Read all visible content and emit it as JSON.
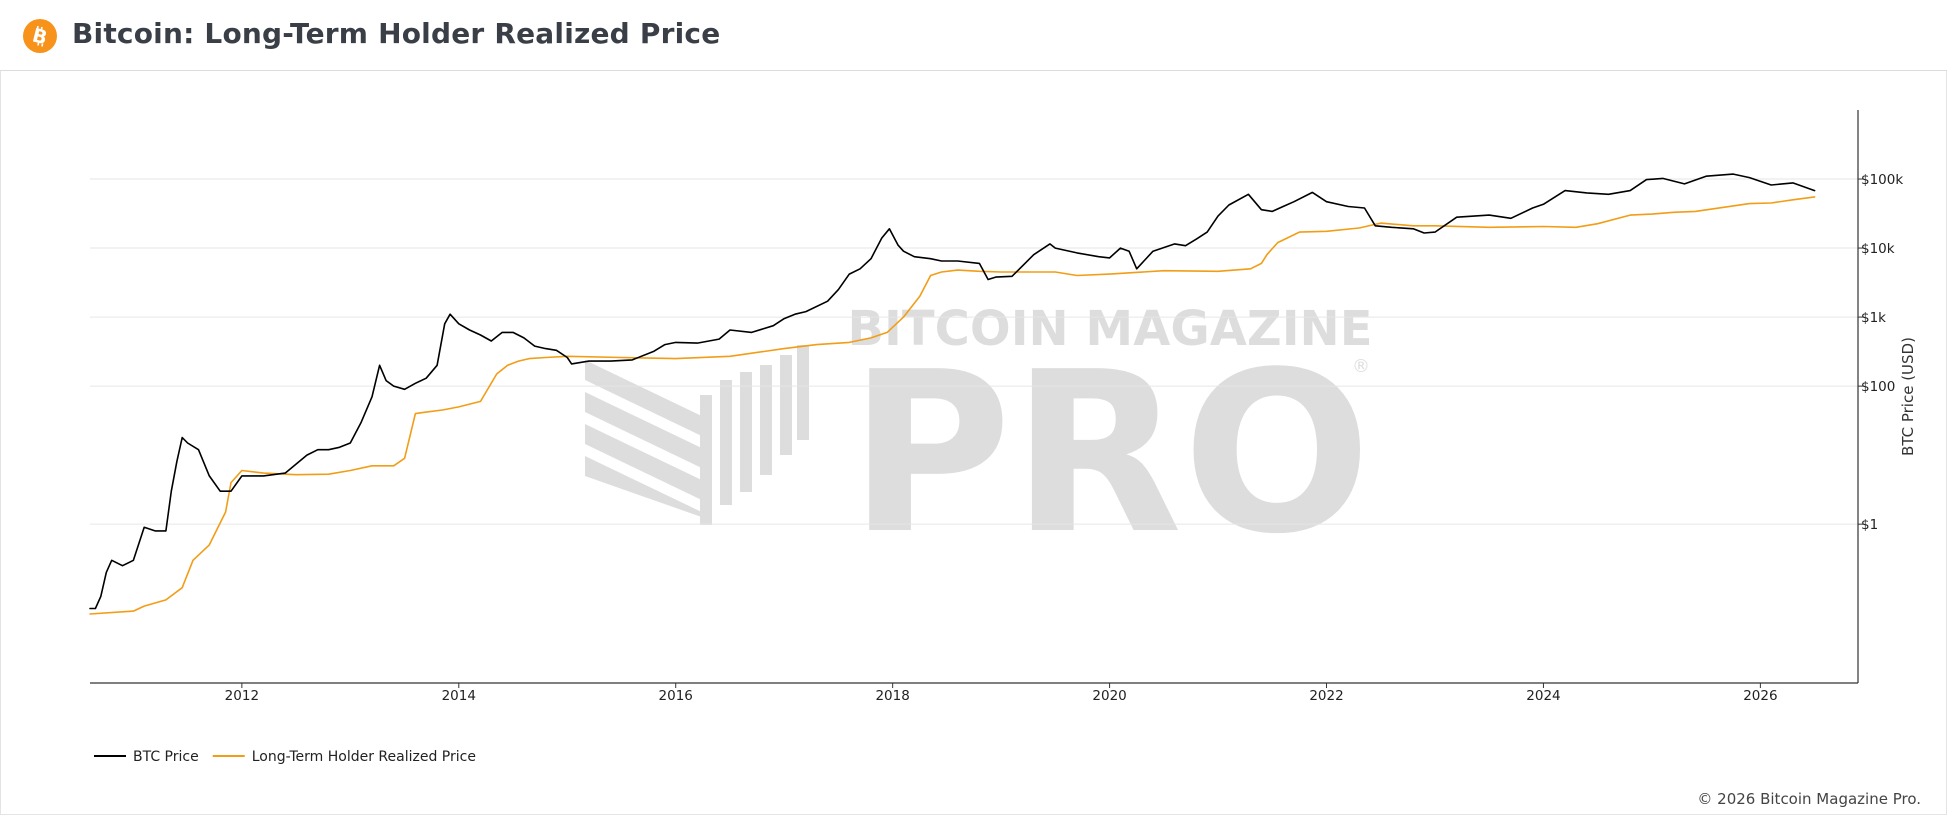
{
  "header": {
    "title": "Bitcoin: Long-Term Holder Realized Price",
    "logo_icon": "bitcoin-logo-icon",
    "brand_color": "#f7931a"
  },
  "watermark": {
    "line1": "BITCOIN MAGAZINE",
    "line2": "PRO",
    "registered": "®"
  },
  "footer": {
    "copyright": "© 2026 Bitcoin Magazine Pro."
  },
  "chart_data": {
    "type": "line",
    "title": "Bitcoin: Long-Term Holder Realized Price",
    "xlabel": "",
    "ylabel": "BTC Price (USD)",
    "yscale": "log",
    "ylim": [
      0.005,
      1000000
    ],
    "xlim": [
      2010.6,
      2026.9
    ],
    "x_ticks": [
      2012,
      2014,
      2016,
      2018,
      2020,
      2022,
      2024,
      2026
    ],
    "y_ticks": [
      {
        "value": 1,
        "label": "$1"
      },
      {
        "value": 100,
        "label": "$100"
      },
      {
        "value": 1000,
        "label": "$1k"
      },
      {
        "value": 10000,
        "label": "$10k"
      },
      {
        "value": 100000,
        "label": "$100k"
      }
    ],
    "grid": "horizontal",
    "legend_position": "bottom-left",
    "series": [
      {
        "name": "BTC Price",
        "color": "#000000",
        "x": [
          2010.6,
          2010.65,
          2010.7,
          2010.75,
          2010.8,
          2010.9,
          2011.0,
          2011.1,
          2011.2,
          2011.3,
          2011.35,
          2011.4,
          2011.45,
          2011.5,
          2011.6,
          2011.7,
          2011.8,
          2011.9,
          2012.0,
          2012.1,
          2012.2,
          2012.4,
          2012.6,
          2012.7,
          2012.8,
          2012.9,
          2013.0,
          2013.1,
          2013.2,
          2013.27,
          2013.33,
          2013.4,
          2013.5,
          2013.6,
          2013.7,
          2013.8,
          2013.87,
          2013.92,
          2014.0,
          2014.1,
          2014.2,
          2014.3,
          2014.4,
          2014.5,
          2014.6,
          2014.7,
          2014.8,
          2014.9,
          2015.0,
          2015.04,
          2015.2,
          2015.4,
          2015.6,
          2015.8,
          2015.9,
          2016.0,
          2016.2,
          2016.4,
          2016.5,
          2016.7,
          2016.9,
          2017.0,
          2017.1,
          2017.2,
          2017.4,
          2017.5,
          2017.6,
          2017.7,
          2017.8,
          2017.9,
          2017.97,
          2018.05,
          2018.1,
          2018.2,
          2018.35,
          2018.45,
          2018.6,
          2018.8,
          2018.88,
          2018.95,
          2019.1,
          2019.3,
          2019.45,
          2019.5,
          2019.7,
          2019.9,
          2020.0,
          2020.1,
          2020.18,
          2020.25,
          2020.4,
          2020.6,
          2020.7,
          2020.8,
          2020.9,
          2021.0,
          2021.1,
          2021.28,
          2021.4,
          2021.5,
          2021.6,
          2021.7,
          2021.87,
          2022.0,
          2022.2,
          2022.35,
          2022.45,
          2022.6,
          2022.8,
          2022.9,
          2023.0,
          2023.2,
          2023.5,
          2023.7,
          2023.9,
          2024.0,
          2024.2,
          2024.4,
          2024.6,
          2024.8,
          2024.95,
          2025.1,
          2025.3,
          2025.5,
          2025.75,
          2025.9,
          2026.1,
          2026.3,
          2026.5
        ],
        "y": [
          0.06,
          0.06,
          0.09,
          0.2,
          0.3,
          0.25,
          0.3,
          0.9,
          0.8,
          0.8,
          3,
          8,
          18,
          15,
          12,
          5,
          3,
          3,
          5,
          5,
          5,
          5.5,
          10,
          12,
          12,
          13,
          15,
          30,
          70,
          200,
          120,
          100,
          90,
          110,
          130,
          200,
          800,
          1100,
          800,
          650,
          550,
          450,
          600,
          600,
          500,
          380,
          350,
          330,
          260,
          210,
          230,
          230,
          240,
          320,
          400,
          430,
          420,
          480,
          650,
          600,
          750,
          950,
          1100,
          1200,
          1700,
          2500,
          4200,
          5000,
          7000,
          14000,
          19000,
          11000,
          9000,
          7500,
          7000,
          6500,
          6500,
          6000,
          3500,
          3800,
          3900,
          8000,
          11500,
          10000,
          8500,
          7500,
          7200,
          10000,
          9000,
          5000,
          9000,
          11500,
          10800,
          13500,
          17000,
          29000,
          42000,
          60000,
          36000,
          34000,
          40000,
          47000,
          64000,
          47000,
          40000,
          38000,
          21000,
          20000,
          19000,
          16500,
          17000,
          28000,
          30000,
          27000,
          38000,
          43000,
          68000,
          63000,
          60000,
          68000,
          98000,
          102000,
          85000,
          110000,
          118000,
          105000,
          82000,
          88000,
          68000
        ]
      },
      {
        "name": "Long-Term Holder Realized Price",
        "color": "#f29d16",
        "x": [
          2010.6,
          2011.0,
          2011.1,
          2011.3,
          2011.45,
          2011.55,
          2011.7,
          2011.85,
          2011.9,
          2012.0,
          2012.2,
          2012.5,
          2012.8,
          2013.0,
          2013.2,
          2013.4,
          2013.5,
          2013.6,
          2013.7,
          2013.85,
          2014.0,
          2014.2,
          2014.35,
          2014.45,
          2014.55,
          2014.65,
          2014.8,
          2015.0,
          2015.5,
          2016.0,
          2016.5,
          2017.0,
          2017.3,
          2017.6,
          2017.8,
          2017.95,
          2018.1,
          2018.25,
          2018.35,
          2018.45,
          2018.6,
          2018.8,
          2019.0,
          2019.3,
          2019.5,
          2019.7,
          2020.0,
          2020.5,
          2021.0,
          2021.3,
          2021.4,
          2021.45,
          2021.55,
          2021.75,
          2022.0,
          2022.3,
          2022.5,
          2022.8,
          2023.0,
          2023.5,
          2024.0,
          2024.3,
          2024.5,
          2024.8,
          2025.0,
          2025.2,
          2025.4,
          2025.9,
          2026.1,
          2026.3,
          2026.5
        ],
        "y": [
          0.05,
          0.055,
          0.065,
          0.08,
          0.12,
          0.3,
          0.5,
          1.5,
          4,
          6,
          5.5,
          5.2,
          5.3,
          6.0,
          7,
          7,
          9,
          40,
          42,
          45,
          50,
          60,
          150,
          200,
          230,
          250,
          260,
          270,
          260,
          250,
          270,
          350,
          400,
          430,
          500,
          600,
          1000,
          2000,
          4000,
          4500,
          4800,
          4600,
          4500,
          4500,
          4500,
          4000,
          4200,
          4700,
          4600,
          5000,
          6000,
          8000,
          12000,
          17000,
          17500,
          19500,
          23000,
          21000,
          21000,
          20000,
          20500,
          20000,
          22500,
          30000,
          31000,
          33000,
          34000,
          44000,
          45000,
          50000,
          55000
        ]
      }
    ]
  }
}
